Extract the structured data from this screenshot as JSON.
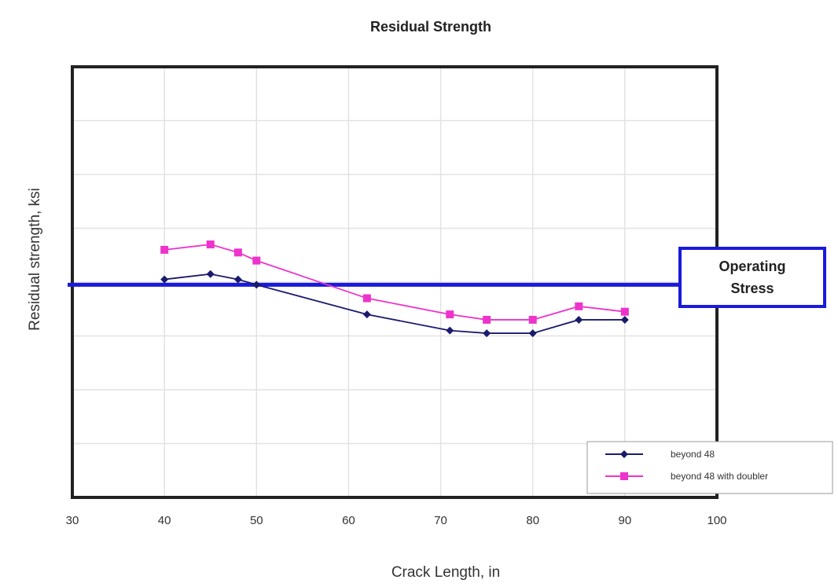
{
  "chart_data": {
    "type": "line",
    "title": "Residual Strength",
    "xlabel": "Crack Length, in",
    "ylabel": "Residual strength, ksi",
    "xlim": [
      30,
      100
    ],
    "x_ticks": [
      30,
      40,
      50,
      60,
      70,
      80,
      90,
      100
    ],
    "y_gridlines": 8,
    "grid": true,
    "legend_position": "bottom-right",
    "series": [
      {
        "name": "beyond 48",
        "color": "#1a1a6e",
        "marker": "diamond",
        "x": [
          40,
          45,
          48,
          50,
          62,
          71,
          75,
          80,
          85,
          90
        ],
        "y": [
          4.05,
          4.15,
          4.05,
          3.95,
          3.4,
          3.1,
          3.05,
          3.05,
          3.3,
          3.3
        ]
      },
      {
        "name": "beyond 48 with doubler",
        "color": "#ee33cc",
        "marker": "square",
        "x": [
          40,
          45,
          48,
          50,
          62,
          71,
          75,
          80,
          85,
          90
        ],
        "y": [
          4.6,
          4.7,
          4.55,
          4.4,
          3.7,
          3.4,
          3.3,
          3.3,
          3.55,
          3.45
        ]
      }
    ],
    "reference_line": {
      "y": 3.95,
      "color": "#1a1adb"
    },
    "annotation": {
      "text_line1": "Operating",
      "text_line2": "Stress",
      "border_color": "#1a1adb"
    }
  }
}
